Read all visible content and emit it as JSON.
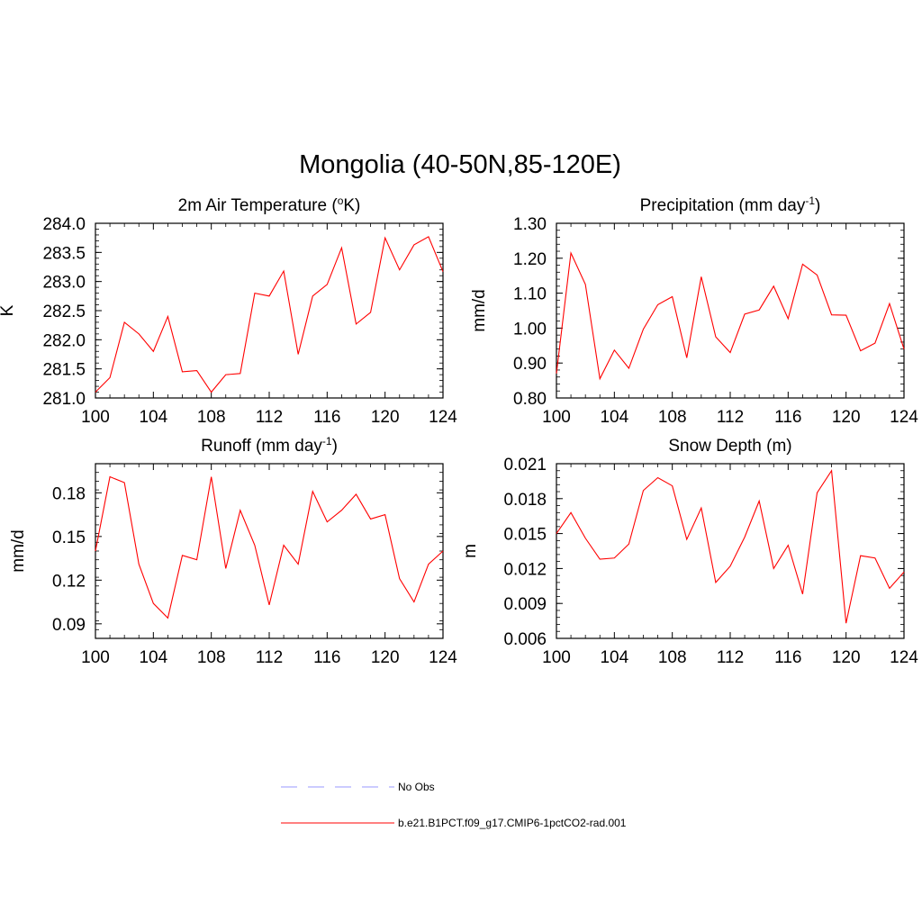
{
  "title": "Mongolia (40-50N,85-120E)",
  "chart_data": [
    {
      "type": "line",
      "title": "2m Air Temperature (oK)",
      "title_parts": {
        "before": "2m Air Temperature (",
        "sup": "o",
        "after": "K)"
      },
      "ylabel": "K",
      "xlim": [
        100,
        124
      ],
      "ylim": [
        281.0,
        284.0
      ],
      "xticks": [
        "100",
        "104",
        "108",
        "112",
        "116",
        "120",
        "124"
      ],
      "yticks": [
        "281.0",
        "281.5",
        "282.0",
        "282.5",
        "283.0",
        "283.5",
        "284.0"
      ],
      "series": [
        {
          "name": "b.e21.B1PCT.f09_g17.CMIP6-1pctCO2-rad.001",
          "color": "#ff0000",
          "x": [
            100,
            101,
            102,
            103,
            104,
            105,
            106,
            107,
            108,
            109,
            110,
            111,
            112,
            113,
            114,
            115,
            116,
            117,
            118,
            119,
            120,
            121,
            122,
            123,
            124
          ],
          "values": [
            281.1,
            281.35,
            282.3,
            282.1,
            281.8,
            282.4,
            281.45,
            281.47,
            281.1,
            281.4,
            281.42,
            282.8,
            282.75,
            283.18,
            281.75,
            282.75,
            282.95,
            283.58,
            282.27,
            282.47,
            283.75,
            283.2,
            283.63,
            283.77,
            283.17
          ]
        }
      ]
    },
    {
      "type": "line",
      "title": "Precipitation (mm day-1)",
      "title_parts": {
        "before": "Precipitation (mm day",
        "sup": "-1",
        "after": ")"
      },
      "ylabel": "mm/d",
      "xlim": [
        100,
        124
      ],
      "ylim": [
        0.8,
        1.3
      ],
      "xticks": [
        "100",
        "104",
        "108",
        "112",
        "116",
        "120",
        "124"
      ],
      "yticks": [
        "0.80",
        "0.90",
        "1.00",
        "1.10",
        "1.20",
        "1.30"
      ],
      "series": [
        {
          "name": "b.e21.B1PCT.f09_g17.CMIP6-1pctCO2-rad.001",
          "color": "#ff0000",
          "x": [
            100,
            101,
            102,
            103,
            104,
            105,
            106,
            107,
            108,
            109,
            110,
            111,
            112,
            113,
            114,
            115,
            116,
            117,
            118,
            119,
            120,
            121,
            122,
            123,
            124
          ],
          "values": [
            0.87,
            1.215,
            1.125,
            0.855,
            0.937,
            0.885,
            0.997,
            1.067,
            1.09,
            0.915,
            1.147,
            0.975,
            0.93,
            1.04,
            1.052,
            1.12,
            1.027,
            1.183,
            1.152,
            1.038,
            1.037,
            0.935,
            0.957,
            1.07,
            0.94
          ]
        }
      ]
    },
    {
      "type": "line",
      "title": "Runoff (mm day-1)",
      "title_parts": {
        "before": "Runoff (mm day",
        "sup": "-1",
        "after": ")"
      },
      "ylabel": "mm/d",
      "xlim": [
        100,
        124
      ],
      "ylim": [
        0.08,
        0.2
      ],
      "xticks": [
        "100",
        "104",
        "108",
        "112",
        "116",
        "120",
        "124"
      ],
      "yticks": [
        "0.09",
        "0.12",
        "0.15",
        "0.18"
      ],
      "series": [
        {
          "name": "b.e21.B1PCT.f09_g17.CMIP6-1pctCO2-rad.001",
          "color": "#ff0000",
          "x": [
            100,
            101,
            102,
            103,
            104,
            105,
            106,
            107,
            108,
            109,
            110,
            111,
            112,
            113,
            114,
            115,
            116,
            117,
            118,
            119,
            120,
            121,
            122,
            123,
            124
          ],
          "values": [
            0.14,
            0.191,
            0.187,
            0.131,
            0.104,
            0.094,
            0.137,
            0.134,
            0.191,
            0.128,
            0.168,
            0.144,
            0.103,
            0.144,
            0.131,
            0.181,
            0.16,
            0.168,
            0.179,
            0.162,
            0.165,
            0.121,
            0.105,
            0.131,
            0.14
          ]
        }
      ]
    },
    {
      "type": "line",
      "title": "Snow Depth (m)",
      "title_parts": {
        "before": "Snow Depth (m)",
        "sup": "",
        "after": ""
      },
      "ylabel": "m",
      "xlim": [
        100,
        124
      ],
      "ylim": [
        0.006,
        0.021
      ],
      "xticks": [
        "100",
        "104",
        "108",
        "112",
        "116",
        "120",
        "124"
      ],
      "yticks": [
        "0.006",
        "0.009",
        "0.012",
        "0.015",
        "0.018",
        "0.021"
      ],
      "series": [
        {
          "name": "b.e21.B1PCT.f09_g17.CMIP6-1pctCO2-rad.001",
          "color": "#ff0000",
          "x": [
            100,
            101,
            102,
            103,
            104,
            105,
            106,
            107,
            108,
            109,
            110,
            111,
            112,
            113,
            114,
            115,
            116,
            117,
            118,
            119,
            120,
            121,
            122,
            123,
            124
          ],
          "values": [
            0.015,
            0.0168,
            0.0146,
            0.0128,
            0.0129,
            0.0141,
            0.0187,
            0.0198,
            0.0191,
            0.0145,
            0.0172,
            0.0108,
            0.0122,
            0.0147,
            0.0178,
            0.012,
            0.014,
            0.0098,
            0.0185,
            0.0204,
            0.0073,
            0.0131,
            0.0129,
            0.0103,
            0.0117
          ]
        }
      ]
    }
  ],
  "legend": {
    "items": [
      {
        "label": "No Obs",
        "color": "#9999ff",
        "style": "dashed"
      },
      {
        "label": "b.e21.B1PCT.f09_g17.CMIP6-1pctCO2-rad.001",
        "color": "#ff0000",
        "style": "solid"
      }
    ]
  }
}
